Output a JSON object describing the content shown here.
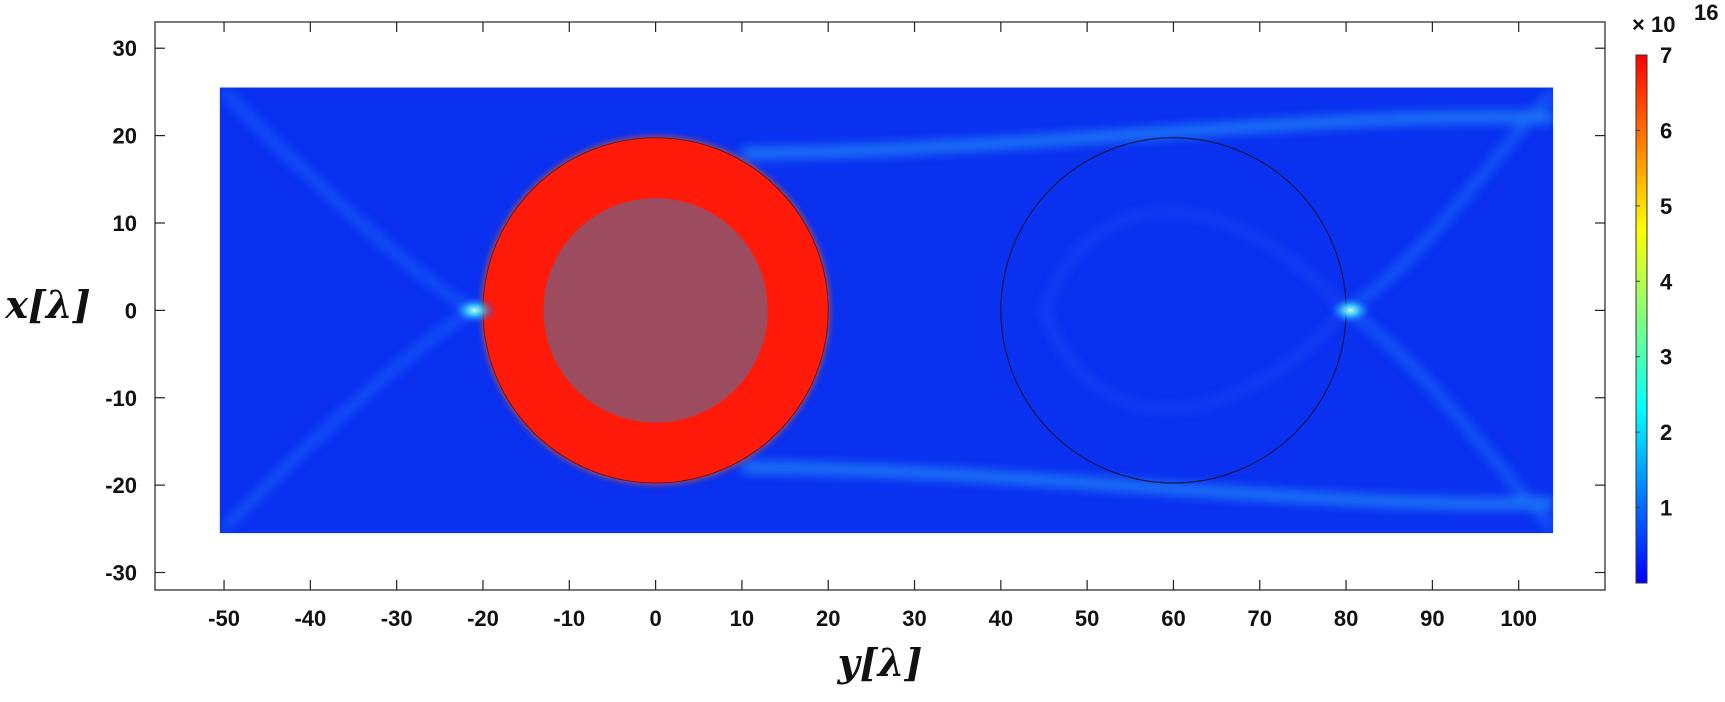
{
  "chart_data": {
    "type": "heatmap",
    "xlabel": "y[λ]",
    "ylabel": "x[λ]",
    "xlim": [
      -58,
      110
    ],
    "ylim": [
      -32,
      33
    ],
    "x_ticks": [
      -50,
      -40,
      -30,
      -20,
      -10,
      0,
      10,
      20,
      30,
      40,
      50,
      60,
      70,
      80,
      90,
      100
    ],
    "x_tick_labels": [
      "-50",
      "-40",
      "-30",
      "-20",
      "-10",
      "0",
      "10",
      "20",
      "30",
      "40",
      "50",
      "60",
      "70",
      "80",
      "90",
      "100"
    ],
    "y_ticks": [
      30,
      20,
      10,
      0,
      -10,
      -20,
      -30
    ],
    "y_tick_labels": [
      "30",
      "20",
      "10",
      "0",
      "-10",
      "-20",
      "-30"
    ],
    "field_extent": {
      "y": [
        -50.5,
        104
      ],
      "x": [
        -25.5,
        25.5
      ]
    },
    "colorbar": {
      "multiplier": "× 10",
      "exponent": "16",
      "range": [
        0,
        7
      ],
      "ticks": [
        1,
        2,
        3,
        4,
        5,
        6,
        7
      ],
      "tick_labels": [
        "1",
        "2",
        "3",
        "4",
        "5",
        "6",
        "7"
      ],
      "colormap": [
        "#0000ff",
        "#0080ff",
        "#00ffff",
        "#80ff80",
        "#ffff00",
        "#ff8000",
        "#ff0000"
      ]
    },
    "features": [
      {
        "kind": "ring",
        "center_y": 0,
        "center_x": 0,
        "outer_radius": 20,
        "inner_radius": 13,
        "value": 7
      },
      {
        "kind": "circle-outline",
        "center_y": 60,
        "center_x": 0,
        "radius": 20
      },
      {
        "kind": "focus",
        "y": -21,
        "x": 0
      },
      {
        "kind": "focus",
        "y": 80.5,
        "x": 0
      }
    ],
    "grid": false
  }
}
